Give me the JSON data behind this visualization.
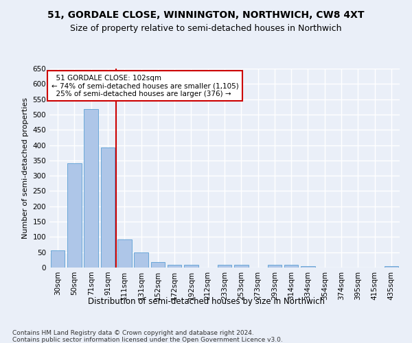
{
  "title": "51, GORDALE CLOSE, WINNINGTON, NORTHWICH, CW8 4XT",
  "subtitle": "Size of property relative to semi-detached houses in Northwich",
  "xlabel": "Distribution of semi-detached houses by size in Northwich",
  "ylabel": "Number of semi-detached properties",
  "categories": [
    "30sqm",
    "50sqm",
    "71sqm",
    "91sqm",
    "111sqm",
    "131sqm",
    "152sqm",
    "172sqm",
    "192sqm",
    "212sqm",
    "233sqm",
    "253sqm",
    "273sqm",
    "293sqm",
    "314sqm",
    "334sqm",
    "354sqm",
    "374sqm",
    "395sqm",
    "415sqm",
    "435sqm"
  ],
  "values": [
    57,
    340,
    518,
    393,
    93,
    50,
    18,
    9,
    9,
    0,
    9,
    9,
    0,
    9,
    9,
    5,
    0,
    0,
    0,
    0,
    5
  ],
  "bar_color": "#aec6e8",
  "bar_edge_color": "#5a9fd4",
  "vline_x": 3.5,
  "vline_color": "#cc0000",
  "annotation_text": "  51 GORDALE CLOSE: 102sqm\n← 74% of semi-detached houses are smaller (1,105)\n  25% of semi-detached houses are larger (376) →",
  "annotation_box_color": "#ffffff",
  "annotation_box_edge_color": "#cc0000",
  "ylim": [
    0,
    650
  ],
  "yticks": [
    0,
    50,
    100,
    150,
    200,
    250,
    300,
    350,
    400,
    450,
    500,
    550,
    600,
    650
  ],
  "footnote": "Contains HM Land Registry data © Crown copyright and database right 2024.\nContains public sector information licensed under the Open Government Licence v3.0.",
  "bg_color": "#eaeff8",
  "plot_bg_color": "#eaeff8",
  "grid_color": "#ffffff",
  "title_fontsize": 10,
  "subtitle_fontsize": 9,
  "xlabel_fontsize": 8.5,
  "ylabel_fontsize": 8,
  "tick_fontsize": 7.5,
  "footnote_fontsize": 6.5
}
